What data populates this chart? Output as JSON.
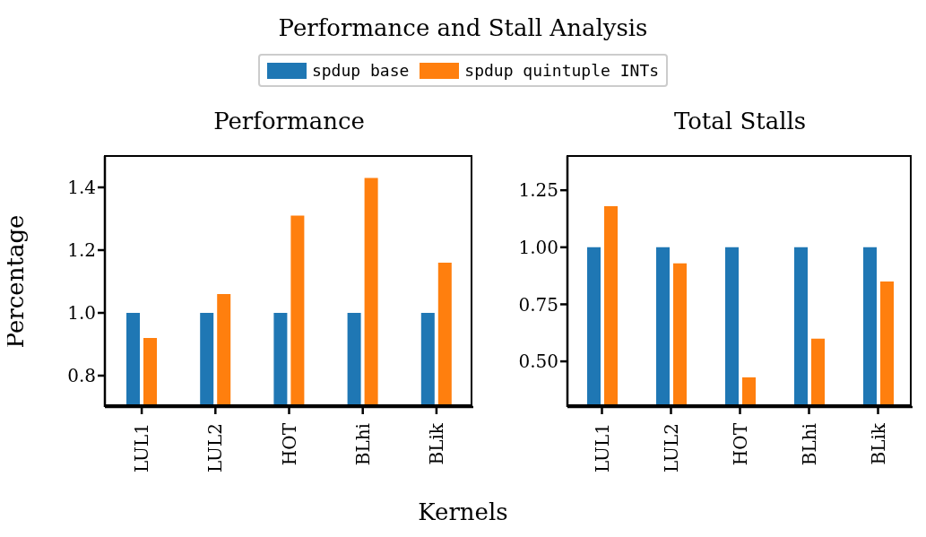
{
  "chart_data": [
    {
      "type": "bar",
      "title": "Performance",
      "annotations": [
        "Performance and Stall Analysis"
      ],
      "xlabel": "Kernels",
      "ylabel": "Percentage",
      "legend": "top",
      "categories": [
        "LUL1",
        "LUL2",
        "HOT",
        "BLhi",
        "BLik"
      ],
      "series": [
        {
          "name": "spdup base",
          "color": "#1f77b4",
          "values": [
            1.0,
            1.0,
            1.0,
            1.0,
            1.0
          ]
        },
        {
          "name": "spdup quintuple INTs",
          "color": "#ff7f0e",
          "values": [
            0.92,
            1.06,
            1.31,
            1.43,
            1.16
          ]
        }
      ],
      "ylim": [
        0.7,
        1.5
      ],
      "yticks": [
        {
          "value": 0.8,
          "label": "0.8"
        },
        {
          "value": 1.0,
          "label": "1.0"
        },
        {
          "value": 1.2,
          "label": "1.2"
        },
        {
          "value": 1.4,
          "label": "1.4"
        }
      ]
    },
    {
      "type": "bar",
      "title": "Total Stalls",
      "categories": [
        "LUL1",
        "LUL2",
        "HOT",
        "BLhi",
        "BLik"
      ],
      "series": [
        {
          "color": "#1f77b4",
          "values": [
            1.0,
            1.0,
            1.0,
            1.0,
            1.0
          ]
        },
        {
          "color": "#ff7f0e",
          "values": [
            1.18,
            0.93,
            0.43,
            0.6,
            0.85
          ]
        }
      ],
      "ylim": [
        0.3,
        1.4
      ],
      "yticks": [
        {
          "value": 0.5,
          "label": "0.50"
        },
        {
          "value": 0.75,
          "label": "0.75"
        },
        {
          "value": 1.0,
          "label": "1.00"
        },
        {
          "value": 1.25,
          "label": "1.25"
        }
      ]
    }
  ]
}
